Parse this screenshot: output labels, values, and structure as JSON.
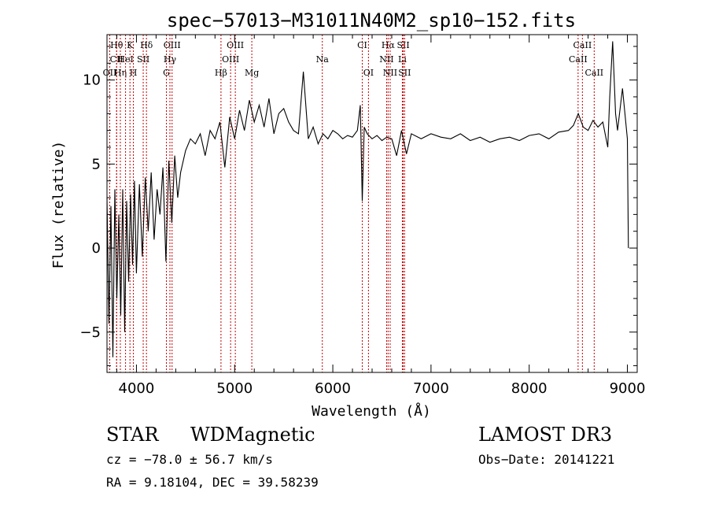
{
  "chart_data": {
    "type": "line",
    "title": "spec−57013−M31011N40M2_sp10−152.fits",
    "xlabel": "Wavelength (Å)",
    "ylabel": "Flux (relative)",
    "xlim": [
      3700,
      9100
    ],
    "ylim": [
      -7.4,
      12.7
    ],
    "xticks": [
      4000,
      5000,
      6000,
      7000,
      8000,
      9000
    ],
    "yticks": [
      -5,
      0,
      5,
      10
    ],
    "grid": false,
    "series": [
      {
        "name": "flux",
        "x": [
          3700,
          3720,
          3740,
          3760,
          3780,
          3800,
          3820,
          3840,
          3860,
          3880,
          3900,
          3920,
          3940,
          3960,
          3980,
          4000,
          4030,
          4060,
          4090,
          4120,
          4150,
          4180,
          4210,
          4240,
          4270,
          4300,
          4330,
          4360,
          4390,
          4420,
          4450,
          4500,
          4550,
          4600,
          4650,
          4700,
          4750,
          4800,
          4850,
          4900,
          4950,
          5000,
          5050,
          5100,
          5150,
          5200,
          5250,
          5300,
          5350,
          5400,
          5450,
          5500,
          5550,
          5600,
          5650,
          5700,
          5750,
          5800,
          5850,
          5900,
          5950,
          6000,
          6050,
          6100,
          6150,
          6200,
          6250,
          6280,
          6300,
          6320,
          6350,
          6400,
          6450,
          6500,
          6550,
          6600,
          6650,
          6700,
          6750,
          6800,
          6900,
          7000,
          7100,
          7200,
          7300,
          7400,
          7500,
          7600,
          7700,
          7800,
          7900,
          8000,
          8100,
          8200,
          8300,
          8400,
          8450,
          8500,
          8550,
          8600,
          8650,
          8700,
          8750,
          8800,
          8820,
          8850,
          8880,
          8900,
          8950,
          9000,
          9010
        ],
        "values": [
          3.0,
          -4.5,
          2.5,
          -6.5,
          3.5,
          -3.0,
          2.0,
          -4.0,
          3.5,
          -5.0,
          2.8,
          -2.0,
          3.2,
          -1.0,
          4.0,
          -1.5,
          3.8,
          -0.5,
          4.2,
          1.0,
          4.5,
          0.5,
          3.5,
          2.0,
          4.8,
          -0.8,
          5.2,
          1.5,
          5.5,
          3.0,
          4.5,
          5.8,
          6.5,
          6.2,
          6.8,
          5.5,
          7.0,
          6.5,
          7.5,
          4.8,
          7.8,
          6.5,
          8.2,
          7.0,
          8.8,
          7.5,
          8.5,
          7.2,
          8.9,
          6.8,
          8.0,
          8.3,
          7.5,
          7.0,
          6.8,
          10.5,
          6.5,
          7.2,
          6.2,
          6.8,
          6.5,
          7.0,
          6.8,
          6.5,
          6.7,
          6.6,
          7.0,
          8.5,
          2.8,
          7.2,
          6.8,
          6.5,
          6.7,
          6.4,
          6.6,
          6.5,
          5.5,
          7.0,
          5.6,
          6.8,
          6.5,
          6.8,
          6.6,
          6.5,
          6.8,
          6.4,
          6.6,
          6.3,
          6.5,
          6.6,
          6.4,
          6.7,
          6.8,
          6.5,
          6.9,
          7.0,
          7.3,
          8.0,
          7.2,
          7.0,
          7.6,
          7.2,
          7.5,
          6.0,
          9.0,
          12.3,
          8.0,
          7.0,
          9.5,
          6.5,
          0.0
        ]
      }
    ],
    "line_markers": [
      {
        "label": "Hθ",
        "x": 3798,
        "row": 0
      },
      {
        "label": "CII",
        "x": 3798,
        "row": 1
      },
      {
        "label": "OII",
        "x": 3728,
        "row": 2
      },
      {
        "label": "Hη",
        "x": 3836,
        "row": 2
      },
      {
        "label": "K",
        "x": 3934,
        "row": 0
      },
      {
        "label": "HeI",
        "x": 3889,
        "row": 1
      },
      {
        "label": "SII",
        "x": 4069,
        "row": 1
      },
      {
        "label": "H",
        "x": 3969,
        "row": 2
      },
      {
        "label": "Hδ",
        "x": 4102,
        "row": 0
      },
      {
        "label": "OIII",
        "x": 4363,
        "row": 0
      },
      {
        "label": "Hγ",
        "x": 4341,
        "row": 1
      },
      {
        "label": "G",
        "x": 4305,
        "row": 2
      },
      {
        "label": "OIII",
        "x": 5007,
        "row": 0
      },
      {
        "label": "OIII",
        "x": 4959,
        "row": 1
      },
      {
        "label": "Hβ",
        "x": 4861,
        "row": 2
      },
      {
        "label": "Mg",
        "x": 5175,
        "row": 2
      },
      {
        "label": "Na",
        "x": 5893,
        "row": 1
      },
      {
        "label": "CI",
        "x": 6300,
        "row": 0
      },
      {
        "label": "OI",
        "x": 6363,
        "row": 2
      },
      {
        "label": "Hα",
        "x": 6563,
        "row": 0
      },
      {
        "label": "SII",
        "x": 6717,
        "row": 0
      },
      {
        "label": "NII",
        "x": 6548,
        "row": 1
      },
      {
        "label": "Li",
        "x": 6708,
        "row": 1
      },
      {
        "label": "NII",
        "x": 6584,
        "row": 2
      },
      {
        "label": "SII",
        "x": 6731,
        "row": 2
      },
      {
        "label": "CaII",
        "x": 8542,
        "row": 0
      },
      {
        "label": "CaII",
        "x": 8498,
        "row": 1
      },
      {
        "label": "CaII",
        "x": 8662,
        "row": 2
      }
    ]
  },
  "info": {
    "class": "STAR",
    "subclass": "WDMagnetic",
    "survey": "LAMOST DR3",
    "cz": "cz = −78.0 ± 56.7 km/s",
    "obs_date": "Obs−Date: 20141221",
    "radec": "RA =   9.18104, DEC =  39.58239"
  }
}
